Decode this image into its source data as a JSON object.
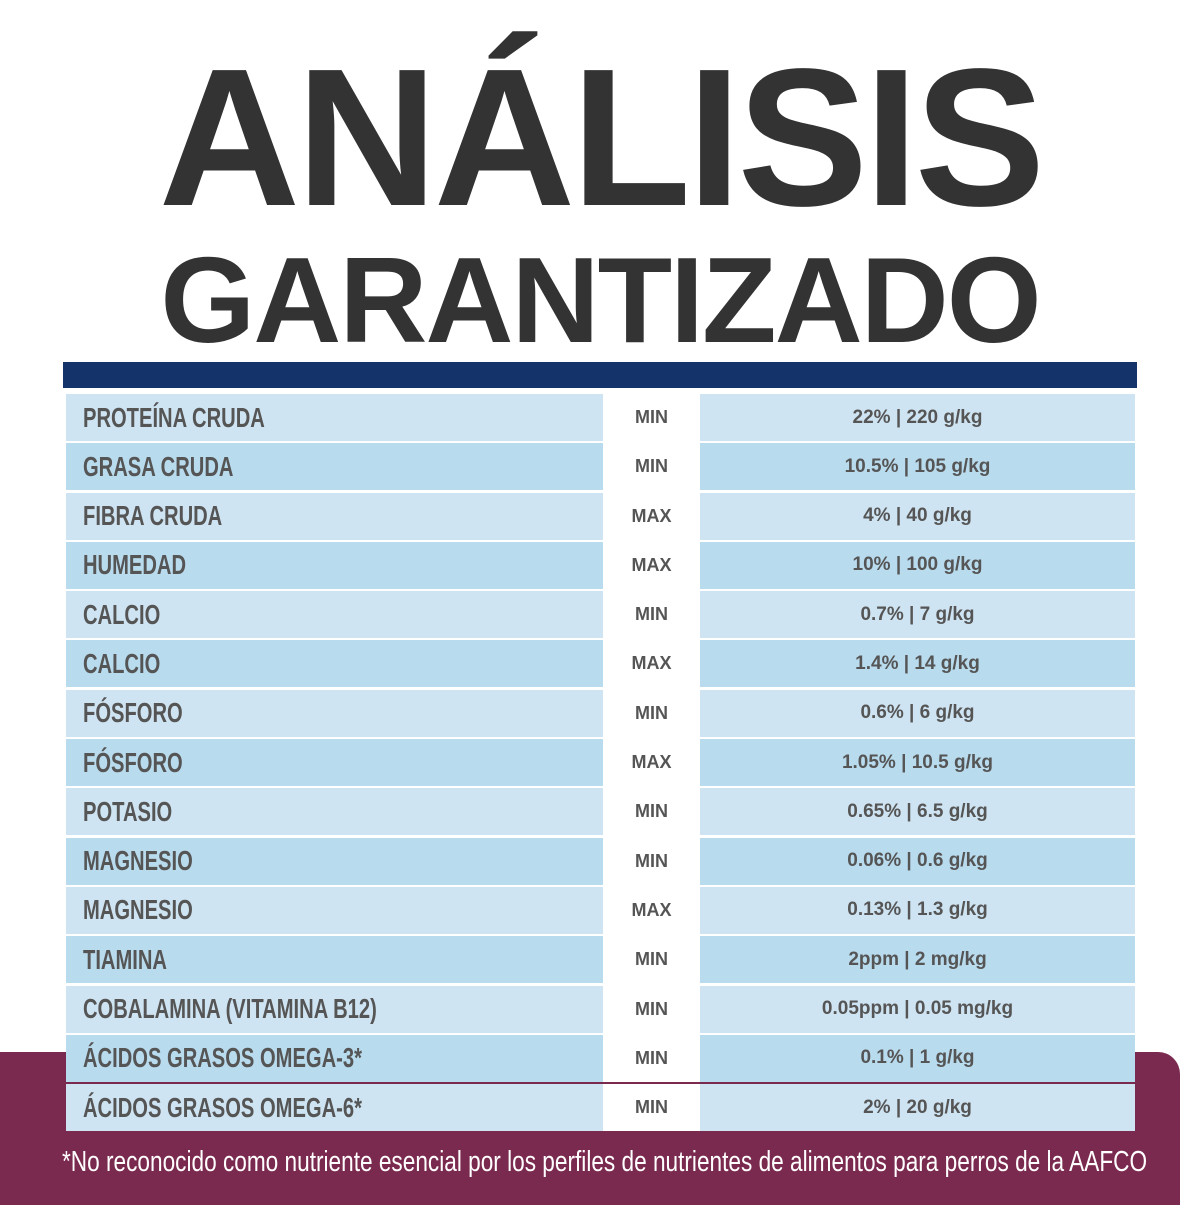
{
  "title_line1": "ANÁLISIS",
  "title_line2": "GARANTIZADO",
  "colors": {
    "header_bar": "#15336b",
    "row_light": "#cfe4f2",
    "row_dark": "#b9dbee",
    "footer": "#7b2a4f",
    "text": "#555555"
  },
  "rows": [
    {
      "nutrient": "PROTEÍNA CRUDA",
      "type": "MIN",
      "value": "22% | 220 g/kg"
    },
    {
      "nutrient": "GRASA CRUDA",
      "type": "MIN",
      "value": "10.5% | 105 g/kg"
    },
    {
      "nutrient": "FIBRA CRUDA",
      "type": "MAX",
      "value": "4% | 40 g/kg"
    },
    {
      "nutrient": "HUMEDAD",
      "type": "MAX",
      "value": "10% | 100 g/kg"
    },
    {
      "nutrient": "CALCIO",
      "type": "MIN",
      "value": "0.7% | 7 g/kg"
    },
    {
      "nutrient": "CALCIO",
      "type": "MAX",
      "value": "1.4% | 14 g/kg"
    },
    {
      "nutrient": "FÓSFORO",
      "type": "MIN",
      "value": "0.6% | 6 g/kg"
    },
    {
      "nutrient": "FÓSFORO",
      "type": "MAX",
      "value": "1.05% | 10.5 g/kg"
    },
    {
      "nutrient": "POTASIO",
      "type": "MIN",
      "value": "0.65% | 6.5 g/kg"
    },
    {
      "nutrient": "MAGNESIO",
      "type": "MIN",
      "value": "0.06% | 0.6 g/kg"
    },
    {
      "nutrient": "MAGNESIO",
      "type": "MAX",
      "value": "0.13% | 1.3 g/kg"
    },
    {
      "nutrient": "TIAMINA",
      "type": "MIN",
      "value": "2ppm | 2 mg/kg"
    },
    {
      "nutrient": "COBALAMINA (VITAMINA B12)",
      "type": "MIN",
      "value": "0.05ppm | 0.05 mg/kg"
    },
    {
      "nutrient": "ÁCIDOS GRASOS OMEGA-3*",
      "type": "MIN",
      "value": "0.1% | 1 g/kg"
    },
    {
      "nutrient": "ÁCIDOS GRASOS OMEGA-6*",
      "type": "MIN",
      "value": "2% | 20 g/kg"
    }
  ],
  "footnote": "*No reconocido como nutriente esencial por los perfiles de nutrientes de alimentos para perros de la AAFCO"
}
